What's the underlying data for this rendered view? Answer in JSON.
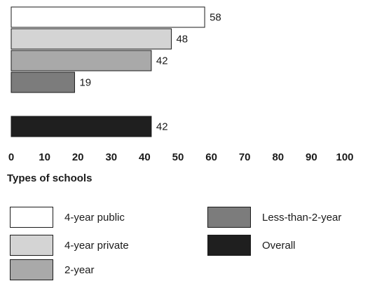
{
  "chart_data": {
    "type": "bar",
    "orientation": "horizontal",
    "categories": [
      "4-year public",
      "4-year private",
      "2-year",
      "Less-than-2-year",
      "Overall"
    ],
    "values": [
      58,
      48,
      42,
      19,
      42
    ],
    "data_labels": [
      "58",
      "48",
      "42",
      "19",
      "42"
    ],
    "colors": [
      "#ffffff",
      "#d4d4d4",
      "#a9a9a9",
      "#7c7c7c",
      "#1f1f1f"
    ],
    "xlim": [
      0,
      100
    ],
    "xticks": [
      "0",
      "10",
      "20",
      "30",
      "40",
      "50",
      "60",
      "70",
      "80",
      "90",
      "100"
    ],
    "xlabel": "Types of schools",
    "title": "",
    "grid": false,
    "legend_position": "bottom"
  },
  "legend": {
    "items": [
      {
        "label": "4-year public",
        "color": "#ffffff"
      },
      {
        "label": "4-year private",
        "color": "#d4d4d4"
      },
      {
        "label": "2-year",
        "color": "#a9a9a9"
      },
      {
        "label": "Less-than-2-year",
        "color": "#7c7c7c"
      },
      {
        "label": "Overall",
        "color": "#1f1f1f"
      }
    ]
  }
}
